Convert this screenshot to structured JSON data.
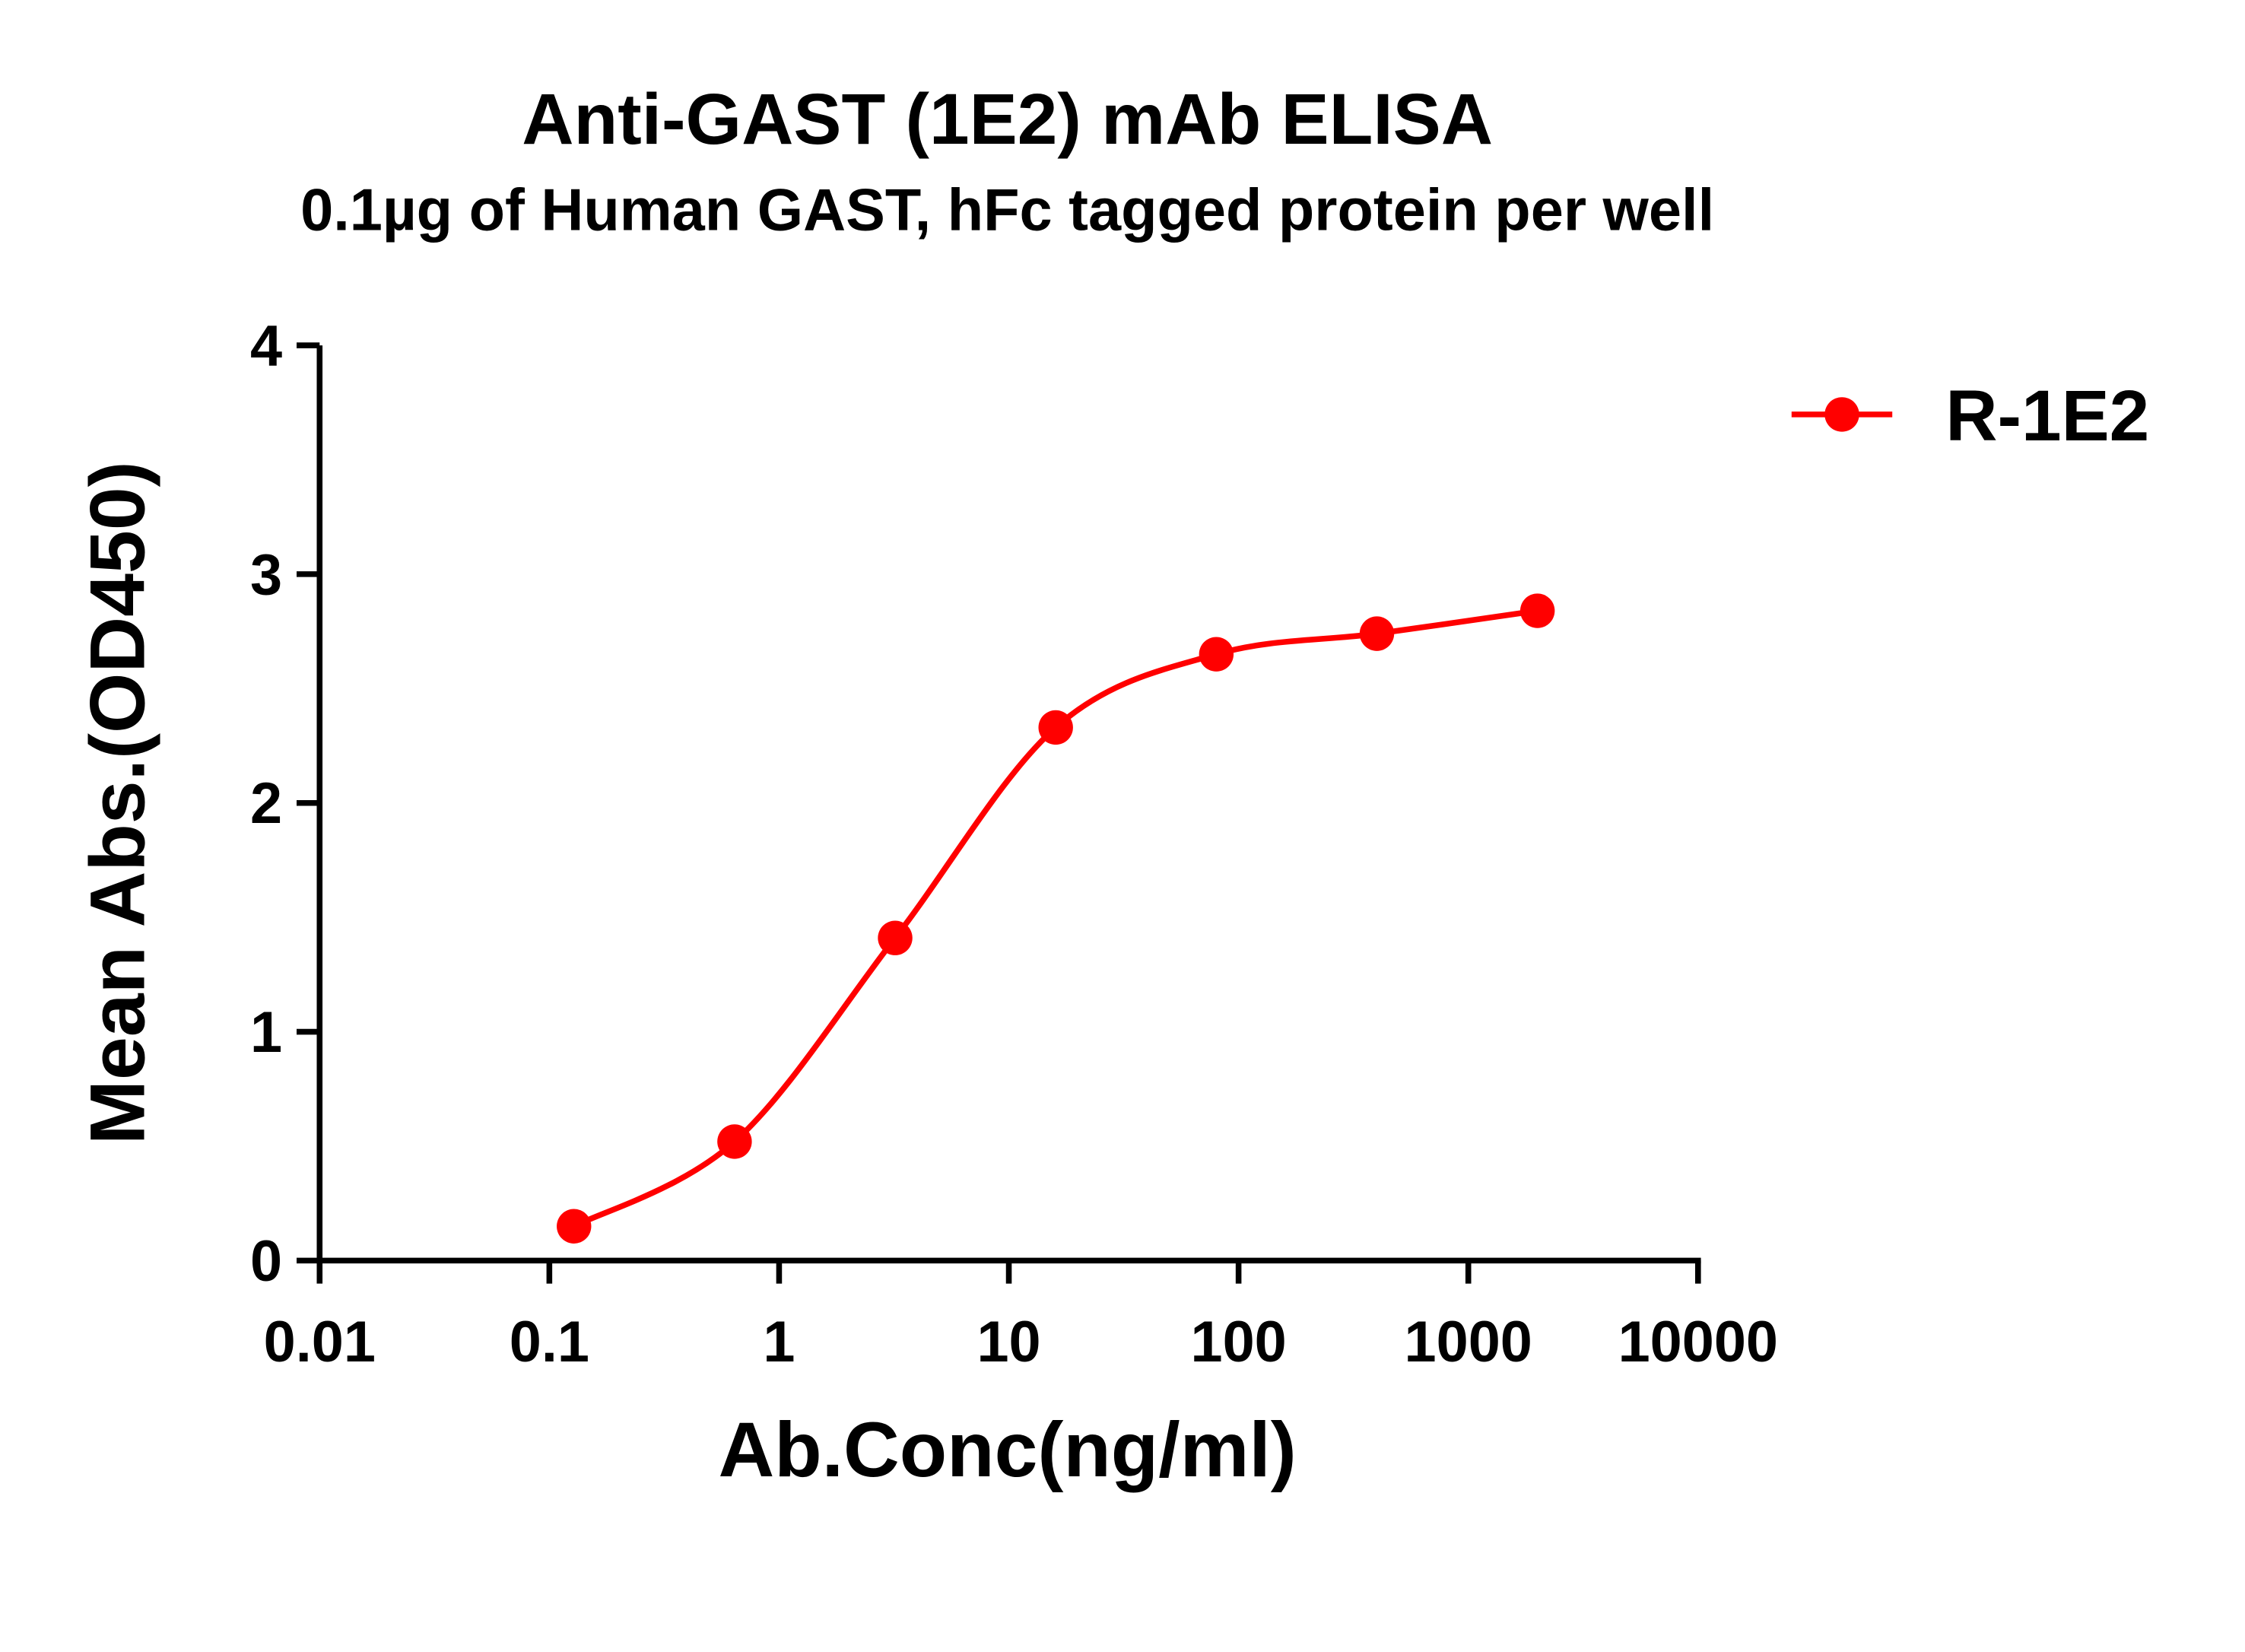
{
  "chart_data": {
    "type": "line",
    "title": "Anti-GAST (1E2) mAb ELISA",
    "subtitle": "0.1µg of Human GAST, hFc tagged protein per well",
    "x_label": "Ab.Conc(ng/ml)",
    "y_label": "Mean Abs.(OD450)",
    "x": [
      0.128,
      0.64,
      3.2,
      16,
      80,
      400,
      2000
    ],
    "series": [
      {
        "name": "R-1E2",
        "color": "#ff0000",
        "values": [
          0.15,
          0.52,
          1.41,
          2.33,
          2.65,
          2.74,
          2.84
        ]
      }
    ],
    "x_log": true,
    "xlim": [
      0.01,
      10000
    ],
    "xticks": [
      0.01,
      0.1,
      1,
      10,
      100,
      1000,
      10000
    ],
    "ylim": [
      0,
      4
    ],
    "yticks": [
      0,
      1,
      2,
      3,
      4
    ],
    "legend": "upper right"
  }
}
